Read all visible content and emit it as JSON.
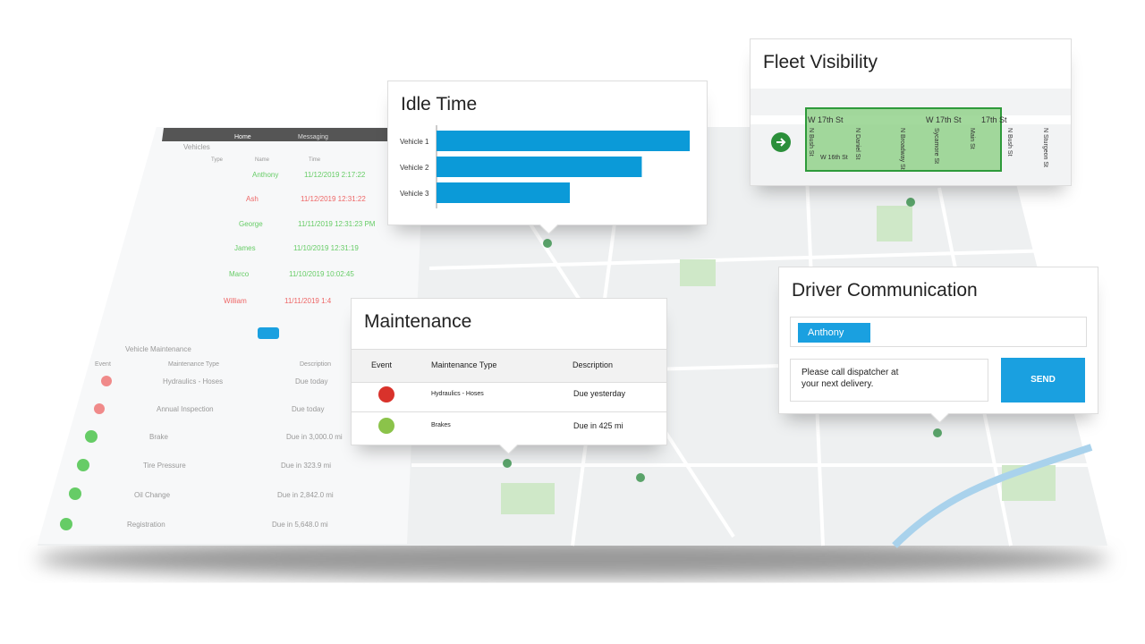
{
  "nav": {
    "home": "Home",
    "messaging": "Messaging"
  },
  "vehicles": {
    "title": "Vehicles",
    "columns": [
      "Type",
      "Name",
      "Time"
    ],
    "rows": [
      {
        "name": "Anthony",
        "time": "11/12/2019 2:17:22"
      },
      {
        "name": "Ash",
        "time": "11/12/2019 12:31:22"
      },
      {
        "name": "George",
        "time": "11/11/2019 12:31:23 PM"
      },
      {
        "name": "James",
        "time": "11/10/2019 12:31:19"
      },
      {
        "name": "Marco",
        "time": "11/10/2019 10:02:45"
      },
      {
        "name": "William",
        "time": "11/11/2019 1:4"
      }
    ]
  },
  "vehicle_maintenance": {
    "title": "Vehicle Maintenance",
    "columns": [
      "Event",
      "Maintenance Type",
      "Description"
    ],
    "rows": [
      {
        "type": "Hydraulics - Hoses",
        "description": "Due today"
      },
      {
        "type": "Annual Inspection",
        "description": "Due today"
      },
      {
        "type": "Brake",
        "description": "Due in 3,000.0 mi"
      },
      {
        "type": "Tire Pressure",
        "description": "Due in 323.9 mi"
      },
      {
        "type": "Oil Change",
        "description": "Due in 2,842.0 mi"
      },
      {
        "type": "Registration",
        "description": "Due in 5,648.0 mi"
      }
    ]
  },
  "chart_data": {
    "type": "bar",
    "title": "Idle Time",
    "categories": [
      "Vehicle 1",
      "Vehicle 2",
      "Vehicle 3"
    ],
    "values": [
      95,
      77,
      50
    ],
    "xlim": [
      0,
      100
    ],
    "color": "#0b9ad8"
  },
  "fleet_visibility": {
    "title": "Fleet Visibility",
    "streets": [
      "W 17th St",
      "W 17th St",
      "17th St",
      "W 16th St",
      "N Bush St",
      "N Daniel St",
      "N Broadway St",
      "Sycamore St",
      "Main St",
      "N Bush St",
      "N Sturgeon St"
    ]
  },
  "maintenance": {
    "title": "Maintenance",
    "columns": [
      "Event",
      "Maintenance Type",
      "Description"
    ],
    "rows": [
      {
        "type": "Hydraulics - Hoses",
        "description": "Due yesterday"
      },
      {
        "type": "Brakes",
        "description": "Due in 425 mi"
      }
    ]
  },
  "driver_communication": {
    "title": "Driver Communication",
    "recipient": "Anthony",
    "message": "Please call dispatcher at your next delivery.",
    "button": "SEND"
  }
}
